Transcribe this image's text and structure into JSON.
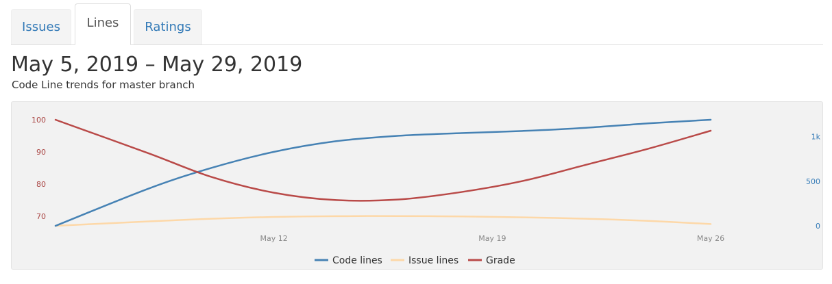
{
  "tabs": [
    {
      "label": "Issues",
      "active": false
    },
    {
      "label": "Lines",
      "active": true
    },
    {
      "label": "Ratings",
      "active": false
    }
  ],
  "header": {
    "title": "May 5, 2019 – May 29, 2019",
    "subtitle": "Code Line trends for master branch"
  },
  "chart_data": {
    "type": "line",
    "x_ticks": [
      "May 12",
      "May 19",
      "May 26"
    ],
    "x": [
      "May 5",
      "May 8",
      "May 10",
      "May 12",
      "May 14",
      "May 16",
      "May 18",
      "May 20",
      "May 22",
      "May 24",
      "May 26"
    ],
    "left_axis": {
      "ticks": [
        70,
        80,
        90,
        100
      ],
      "range": [
        67,
        100
      ],
      "color": "#a94442"
    },
    "right_axis": {
      "ticks": [
        "0",
        "500",
        "1k"
      ],
      "tick_values": [
        0,
        500,
        1000
      ],
      "range": [
        0,
        1190
      ],
      "color": "#337ab7"
    },
    "series": [
      {
        "name": "Code lines",
        "axis": "right",
        "color": "#4682b4",
        "values": [
          0,
          420,
          650,
          830,
          950,
          1010,
          1040,
          1065,
          1100,
          1150,
          1190
        ]
      },
      {
        "name": "Issue lines",
        "axis": "right",
        "color": "#fdd8a8",
        "values": [
          0,
          50,
          80,
          100,
          108,
          110,
          105,
          95,
          80,
          55,
          20
        ]
      },
      {
        "name": "Grade",
        "axis": "left",
        "color": "#b94a48",
        "values": [
          100,
          89.5,
          82.2,
          77.3,
          75,
          75.2,
          77.5,
          81,
          86,
          91,
          96.6
        ]
      }
    ],
    "legend_position": "bottom",
    "grid": false
  }
}
